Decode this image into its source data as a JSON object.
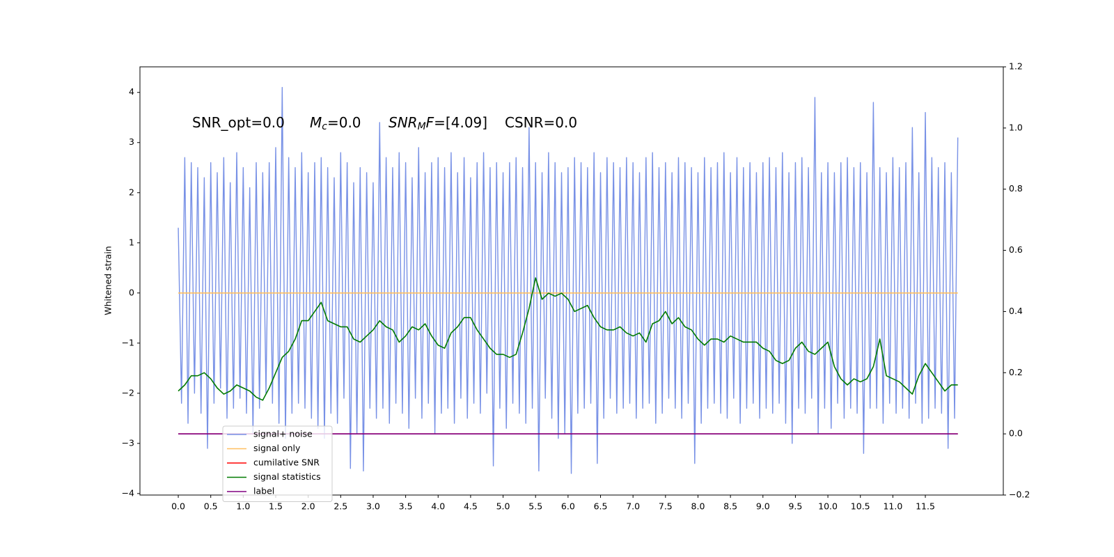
{
  "chart_data": {
    "type": "line",
    "annotations": [
      "SNR_opt=0.0",
      {
        "base": "M",
        "sub": "c",
        "rest": "=0.0"
      },
      {
        "base": "SNR",
        "sub": "M",
        "after": "F",
        "rest": "=[4.09]"
      },
      "CSNR=0.0"
    ],
    "y_label": "Whitened strain",
    "xlim": [
      -0.59,
      12.7
    ],
    "ylim": [
      -4.03,
      4.51
    ],
    "y2lim": [
      -0.2,
      1.2
    ],
    "xticks": [
      {
        "value": 0,
        "label": "0.0"
      },
      0.5,
      {
        "value": 1,
        "label": "1.0"
      },
      1.5,
      {
        "value": 2,
        "label": "2.0"
      },
      2.5,
      {
        "value": 3,
        "label": "3.0"
      },
      3.5,
      {
        "value": 4,
        "label": "4.0"
      },
      4.5,
      {
        "value": 5,
        "label": "5.0"
      },
      5.5,
      {
        "value": 6,
        "label": "6.0"
      },
      6.5,
      {
        "value": 7,
        "label": "7.0"
      },
      7.5,
      {
        "value": 8,
        "label": "8.0"
      },
      8.5,
      {
        "value": 9,
        "label": "9.0"
      },
      9.5,
      {
        "value": 10,
        "label": "10.0"
      },
      10.5,
      {
        "value": 11,
        "label": "11.0"
      },
      11.5
    ],
    "yticks": [
      {
        "value": -4,
        "label": "−4"
      },
      {
        "value": -3,
        "label": "−3"
      },
      {
        "value": -2,
        "label": "−2"
      },
      {
        "value": -1,
        "label": "−1"
      },
      0,
      1,
      2,
      3,
      4
    ],
    "y2ticks": [
      {
        "value": -0.2,
        "label": "−0.2"
      },
      {
        "value": 0,
        "label": "0.0"
      },
      0.2,
      0.4,
      0.6,
      0.8,
      {
        "value": 1,
        "label": "1.0"
      },
      1.2
    ],
    "legend": "lower left",
    "series": [
      {
        "name": "signal+ noise",
        "color": "#7891e6",
        "axis": "y",
        "x": [
          0,
          0.05,
          0.1,
          0.15,
          0.2,
          0.25,
          0.3,
          0.35,
          0.4,
          0.45,
          0.5,
          0.55,
          0.6,
          0.65,
          0.7,
          0.75,
          0.8,
          0.85,
          0.9,
          0.95,
          1,
          1.05,
          1.1,
          1.15,
          1.2,
          1.25,
          1.3,
          1.35,
          1.4,
          1.45,
          1.5,
          1.55,
          1.6,
          1.65,
          1.7,
          1.75,
          1.8,
          1.85,
          1.9,
          1.95,
          2,
          2.05,
          2.1,
          2.15,
          2.2,
          2.25,
          2.3,
          2.35,
          2.4,
          2.45,
          2.5,
          2.55,
          2.6,
          2.65,
          2.7,
          2.75,
          2.8,
          2.85,
          2.9,
          2.95,
          3,
          3.05,
          3.1,
          3.15,
          3.2,
          3.25,
          3.3,
          3.35,
          3.4,
          3.45,
          3.5,
          3.55,
          3.6,
          3.65,
          3.7,
          3.75,
          3.8,
          3.85,
          3.9,
          3.95,
          4,
          4.05,
          4.1,
          4.15,
          4.2,
          4.25,
          4.3,
          4.35,
          4.4,
          4.45,
          4.5,
          4.55,
          4.6,
          4.65,
          4.7,
          4.75,
          4.8,
          4.85,
          4.9,
          4.95,
          5,
          5.05,
          5.1,
          5.15,
          5.2,
          5.25,
          5.3,
          5.35,
          5.4,
          5.45,
          5.5,
          5.55,
          5.6,
          5.65,
          5.7,
          5.75,
          5.8,
          5.85,
          5.9,
          5.95,
          6,
          6.05,
          6.1,
          6.15,
          6.2,
          6.25,
          6.3,
          6.35,
          6.4,
          6.45,
          6.5,
          6.55,
          6.6,
          6.65,
          6.7,
          6.75,
          6.8,
          6.85,
          6.9,
          6.95,
          7,
          7.05,
          7.1,
          7.15,
          7.2,
          7.25,
          7.3,
          7.35,
          7.4,
          7.45,
          7.5,
          7.55,
          7.6,
          7.65,
          7.7,
          7.75,
          7.8,
          7.85,
          7.9,
          7.95,
          8,
          8.05,
          8.1,
          8.15,
          8.2,
          8.25,
          8.3,
          8.35,
          8.4,
          8.45,
          8.5,
          8.55,
          8.6,
          8.65,
          8.7,
          8.75,
          8.8,
          8.85,
          8.9,
          8.95,
          9,
          9.05,
          9.1,
          9.15,
          9.2,
          9.25,
          9.3,
          9.35,
          9.4,
          9.45,
          9.5,
          9.55,
          9.6,
          9.65,
          9.7,
          9.75,
          9.8,
          9.85,
          9.9,
          9.95,
          10,
          10.05,
          10.1,
          10.15,
          10.2,
          10.25,
          10.3,
          10.35,
          10.4,
          10.45,
          10.5,
          10.55,
          10.6,
          10.65,
          10.7,
          10.75,
          10.8,
          10.85,
          10.9,
          10.95,
          11,
          11.05,
          11.1,
          11.15,
          11.2,
          11.25,
          11.3,
          11.35,
          11.4,
          11.45,
          11.5,
          11.55,
          11.6,
          11.65,
          11.7,
          11.75,
          11.8,
          11.85,
          11.9,
          11.95,
          12
        ],
        "values": [
          1.3,
          -2.2,
          2.7,
          -2.6,
          2.6,
          -2.0,
          2.5,
          -2.4,
          2.3,
          -3.1,
          2.6,
          -2.2,
          2.4,
          -1.9,
          2.7,
          -2.5,
          2.2,
          -2.3,
          2.8,
          -2.1,
          2.5,
          -2.4,
          2.1,
          -2.8,
          2.6,
          -2.3,
          2.4,
          -2.0,
          2.6,
          -2.2,
          2.9,
          -2.6,
          4.1,
          -2.9,
          2.7,
          -2.4,
          2.5,
          -2.2,
          2.8,
          -2.3,
          2.4,
          -2.5,
          2.6,
          -2.7,
          2.7,
          -2.9,
          2.5,
          -2.4,
          2.3,
          -2.6,
          2.8,
          -2.1,
          2.6,
          -3.5,
          2.2,
          -2.8,
          2.5,
          -3.55,
          2.4,
          -2.3,
          2.2,
          -2.5,
          3.4,
          -2.3,
          2.7,
          -2.6,
          2.5,
          -2.2,
          2.8,
          -2.4,
          2.6,
          -2.7,
          2.3,
          -2.1,
          2.9,
          -2.5,
          2.4,
          -2.2,
          2.6,
          -2.8,
          2.7,
          -2.4,
          2.5,
          -2.3,
          2.8,
          -2.6,
          2.4,
          -2.1,
          2.7,
          -2.5,
          2.3,
          -2.2,
          2.6,
          -2.4,
          2.8,
          -2.0,
          2.5,
          -3.45,
          2.6,
          -2.3,
          2.4,
          -2.7,
          2.6,
          -2.2,
          2.7,
          -2.4,
          2.5,
          -2.6,
          3.3,
          -2.3,
          2.6,
          -3.55,
          2.4,
          -2.1,
          2.8,
          -2.5,
          2.6,
          -2.9,
          2.4,
          -2.8,
          2.5,
          -3.6,
          2.7,
          -2.4,
          2.6,
          -2.3,
          2.5,
          -2.2,
          2.8,
          -3.4,
          2.4,
          -2.5,
          2.7,
          -2.1,
          2.6,
          -2.4,
          2.5,
          -2.3,
          2.7,
          -2.2,
          2.6,
          -2.5,
          2.4,
          -2.3,
          2.7,
          -2.2,
          2.8,
          -2.6,
          2.5,
          -2.4,
          2.6,
          -2.1,
          2.4,
          -2.3,
          2.7,
          -2.5,
          2.6,
          -2.2,
          2.5,
          -3.4,
          2.4,
          -2.6,
          2.7,
          -2.3,
          2.5,
          -2.2,
          2.6,
          -2.4,
          2.8,
          -2.5,
          2.4,
          -2.1,
          2.7,
          -2.6,
          2.5,
          -2.3,
          2.6,
          -2.2,
          2.4,
          -2.5,
          2.6,
          -2.3,
          2.7,
          -2.4,
          2.5,
          -2.2,
          2.8,
          -2.6,
          2.4,
          -3.0,
          2.6,
          -2.3,
          2.7,
          -2.4,
          2.5,
          -2.1,
          3.9,
          -2.8,
          2.4,
          -2.3,
          2.6,
          -2.7,
          2.4,
          -2.2,
          2.6,
          -2.5,
          2.7,
          -2.3,
          2.5,
          -2.4,
          2.6,
          -3.2,
          2.4,
          -2.3,
          3.8,
          -2.3,
          2.5,
          -2.6,
          2.4,
          -2.2,
          2.7,
          -2.4,
          2.5,
          -2.3,
          2.6,
          -2.5,
          3.3,
          -2.2,
          2.4,
          -2.6,
          3.6,
          -2.5,
          2.7,
          -2.3,
          2.5,
          -2.4,
          2.6,
          -3.1,
          2.4,
          -2.5,
          3.1
        ]
      },
      {
        "name": "signal only",
        "color": "#ffbf60",
        "axis": "y",
        "x": [
          0,
          12
        ],
        "values": [
          0,
          0
        ]
      },
      {
        "name": "cumilative SNR",
        "color": "#ff0000",
        "axis": "y2",
        "x": [
          0,
          12
        ],
        "values": [
          0,
          0
        ]
      },
      {
        "name": "signal statistics",
        "color": "#007a00",
        "axis": "y2",
        "x": [
          0,
          0.1,
          0.2,
          0.3,
          0.4,
          0.5,
          0.6,
          0.7,
          0.8,
          0.9,
          1,
          1.1,
          1.2,
          1.3,
          1.4,
          1.5,
          1.6,
          1.7,
          1.8,
          1.9,
          2,
          2.1,
          2.2,
          2.3,
          2.4,
          2.5,
          2.6,
          2.7,
          2.8,
          2.9,
          3,
          3.1,
          3.2,
          3.3,
          3.4,
          3.5,
          3.6,
          3.7,
          3.8,
          3.9,
          4,
          4.1,
          4.2,
          4.3,
          4.4,
          4.5,
          4.6,
          4.7,
          4.8,
          4.9,
          5,
          5.1,
          5.2,
          5.3,
          5.4,
          5.5,
          5.6,
          5.7,
          5.8,
          5.9,
          6,
          6.1,
          6.2,
          6.3,
          6.4,
          6.5,
          6.6,
          6.7,
          6.8,
          6.9,
          7,
          7.1,
          7.2,
          7.3,
          7.4,
          7.5,
          7.6,
          7.7,
          7.8,
          7.9,
          8,
          8.1,
          8.2,
          8.3,
          8.4,
          8.5,
          8.6,
          8.7,
          8.8,
          8.9,
          9,
          9.1,
          9.2,
          9.3,
          9.4,
          9.5,
          9.6,
          9.7,
          9.8,
          9.9,
          10,
          10.1,
          10.2,
          10.3,
          10.4,
          10.5,
          10.6,
          10.7,
          10.8,
          10.9,
          11,
          11.1,
          11.2,
          11.3,
          11.4,
          11.5,
          11.6,
          11.7,
          11.8,
          11.9,
          12
        ],
        "values": [
          0.14,
          0.16,
          0.19,
          0.19,
          0.2,
          0.18,
          0.15,
          0.13,
          0.14,
          0.16,
          0.15,
          0.14,
          0.12,
          0.11,
          0.15,
          0.2,
          0.25,
          0.27,
          0.31,
          0.37,
          0.37,
          0.4,
          0.43,
          0.37,
          0.36,
          0.35,
          0.35,
          0.31,
          0.3,
          0.32,
          0.34,
          0.37,
          0.35,
          0.34,
          0.3,
          0.32,
          0.35,
          0.34,
          0.36,
          0.32,
          0.29,
          0.28,
          0.33,
          0.35,
          0.38,
          0.38,
          0.34,
          0.31,
          0.28,
          0.26,
          0.26,
          0.25,
          0.26,
          0.33,
          0.41,
          0.51,
          0.44,
          0.46,
          0.45,
          0.46,
          0.44,
          0.4,
          0.41,
          0.42,
          0.38,
          0.35,
          0.34,
          0.34,
          0.35,
          0.33,
          0.32,
          0.33,
          0.3,
          0.36,
          0.37,
          0.4,
          0.36,
          0.38,
          0.35,
          0.34,
          0.31,
          0.29,
          0.31,
          0.31,
          0.3,
          0.32,
          0.31,
          0.3,
          0.3,
          0.3,
          0.28,
          0.27,
          0.24,
          0.23,
          0.24,
          0.28,
          0.3,
          0.27,
          0.26,
          0.28,
          0.3,
          0.22,
          0.18,
          0.16,
          0.18,
          0.17,
          0.18,
          0.22,
          0.31,
          0.19,
          0.18,
          0.17,
          0.15,
          0.13,
          0.19,
          0.23,
          0.2,
          0.17,
          0.14,
          0.16,
          0.16
        ]
      },
      {
        "name": "label",
        "color": "#800080",
        "axis": "y2",
        "x": [
          0,
          12
        ],
        "values": [
          0,
          0
        ]
      }
    ]
  }
}
